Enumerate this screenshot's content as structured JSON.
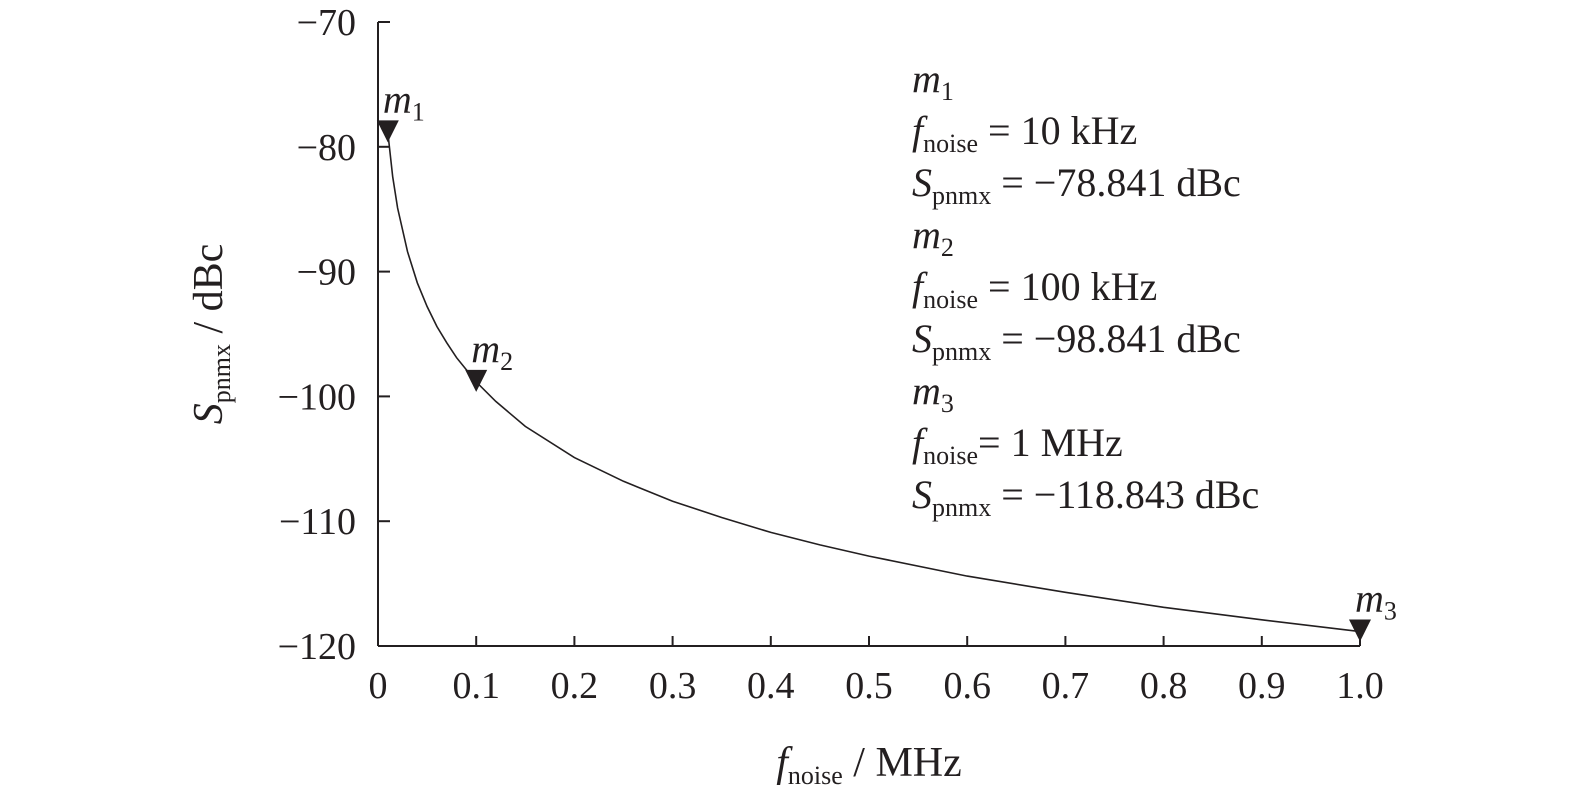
{
  "chart_data": {
    "type": "line",
    "xlabel": {
      "var": "f",
      "sub": "noise",
      "unit": " / MHz"
    },
    "ylabel": {
      "var": "S",
      "sub": "pnmx",
      "unit": " / dBc"
    },
    "xlim": [
      0,
      1.0
    ],
    "ylim": [
      -120,
      -70
    ],
    "x_ticks": [
      0,
      0.1,
      0.2,
      0.3,
      0.4,
      0.5,
      0.6,
      0.7,
      0.8,
      0.9,
      1.0
    ],
    "x_tick_labels": [
      "0",
      "0.1",
      "0.2",
      "0.3",
      "0.4",
      "0.5",
      "0.6",
      "0.7",
      "0.8",
      "0.9",
      "1.0"
    ],
    "y_ticks": [
      -70,
      -80,
      -90,
      -100,
      -110,
      -120
    ],
    "y_tick_labels": [
      "−70",
      "−80",
      "−90",
      "−100",
      "−110",
      "−120"
    ],
    "grid": false,
    "series": [
      {
        "color": "#231f20",
        "x": [
          0.01,
          0.015,
          0.02,
          0.03,
          0.04,
          0.05,
          0.06,
          0.07,
          0.08,
          0.1,
          0.12,
          0.15,
          0.2,
          0.25,
          0.3,
          0.35,
          0.4,
          0.45,
          0.5,
          0.6,
          0.7,
          0.8,
          0.9,
          1.0
        ],
        "y": [
          -78.841,
          -82.4,
          -84.9,
          -88.4,
          -90.9,
          -92.8,
          -94.4,
          -95.7,
          -96.9,
          -98.841,
          -100.4,
          -102.4,
          -104.9,
          -106.8,
          -108.4,
          -109.7,
          -110.9,
          -111.9,
          -112.8,
          -114.4,
          -115.7,
          -116.9,
          -117.9,
          -118.843
        ]
      }
    ],
    "markers": [
      {
        "name": "m",
        "index": "1",
        "x": 0.01,
        "y": -78.841
      },
      {
        "name": "m",
        "index": "2",
        "x": 0.1,
        "y": -98.841
      },
      {
        "name": "m",
        "index": "3",
        "x": 1.0,
        "y": -118.843
      }
    ],
    "annotations": [
      {
        "marker": "m",
        "index": "1",
        "f_var": "f",
        "f_sub": "noise",
        "f_text": " = 10 kHz",
        "s_var": "S",
        "s_sub": "pnmx",
        "s_text": " = −78.841 dBc"
      },
      {
        "marker": "m",
        "index": "2",
        "f_var": "f",
        "f_sub": "noise",
        "f_text": " = 100 kHz",
        "s_var": "S",
        "s_sub": "pnmx",
        "s_text": " = −98.841 dBc"
      },
      {
        "marker": "m",
        "index": "3",
        "f_var": "f",
        "f_sub": "noise",
        "f_text": "= 1 MHz",
        "s_var": "S",
        "s_sub": "pnmx",
        "s_text": " = −118.843 dBc"
      }
    ]
  }
}
